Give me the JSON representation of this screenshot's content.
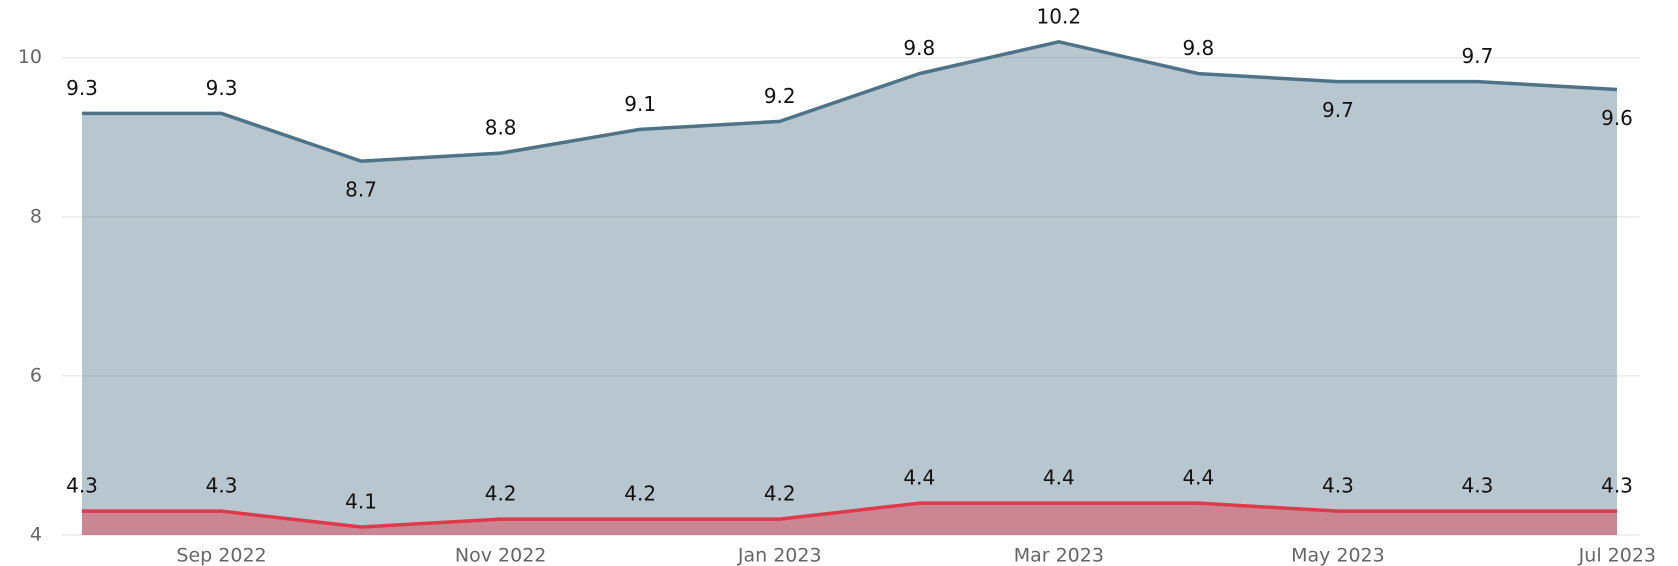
{
  "chart_data": {
    "type": "area",
    "categories": [
      null,
      "Sep 2022",
      null,
      "Nov 2022",
      null,
      "Jan 2023",
      null,
      "Mar 2023",
      null,
      "May 2023",
      null,
      "Jul 2023"
    ],
    "series": [
      {
        "color": "#4e7388",
        "values": [
          9.3,
          9.3,
          8.7,
          8.8,
          9.1,
          9.2,
          9.8,
          10.2,
          9.8,
          9.7,
          9.7,
          9.6
        ]
      },
      {
        "color": "#e0394a",
        "values": [
          4.3,
          4.3,
          4.1,
          4.2,
          4.2,
          4.2,
          4.4,
          4.4,
          4.4,
          4.3,
          4.3,
          4.3
        ]
      }
    ],
    "ylim": [
      4,
      10.6
    ],
    "yticks": [
      4,
      6,
      8,
      10
    ],
    "grid": true
  }
}
